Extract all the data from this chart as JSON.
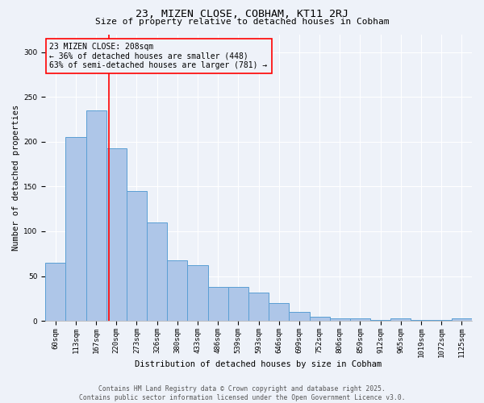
{
  "title": "23, MIZEN CLOSE, COBHAM, KT11 2RJ",
  "subtitle": "Size of property relative to detached houses in Cobham",
  "xlabel": "Distribution of detached houses by size in Cobham",
  "ylabel": "Number of detached properties",
  "categories": [
    "60sqm",
    "113sqm",
    "167sqm",
    "220sqm",
    "273sqm",
    "326sqm",
    "380sqm",
    "433sqm",
    "486sqm",
    "539sqm",
    "593sqm",
    "646sqm",
    "699sqm",
    "752sqm",
    "806sqm",
    "859sqm",
    "912sqm",
    "965sqm",
    "1019sqm",
    "1072sqm",
    "1125sqm"
  ],
  "values": [
    65,
    205,
    235,
    193,
    145,
    110,
    68,
    62,
    38,
    38,
    32,
    20,
    10,
    5,
    3,
    3,
    1,
    3,
    1,
    1,
    3
  ],
  "bar_color": "#aec6e8",
  "bar_edge_color": "#5a9fd4",
  "property_label": "23 MIZEN CLOSE: 208sqm",
  "annotation_line1": "← 36% of detached houses are smaller (448)",
  "annotation_line2": "63% of semi-detached houses are larger (781) →",
  "vline_color": "red",
  "vline_x": 2.62,
  "footer_line1": "Contains HM Land Registry data © Crown copyright and database right 2025.",
  "footer_line2": "Contains public sector information licensed under the Open Government Licence v3.0.",
  "ylim": [
    0,
    320
  ],
  "yticks": [
    0,
    50,
    100,
    150,
    200,
    250,
    300
  ],
  "background_color": "#eef2f9",
  "grid_color": "white",
  "title_fontsize": 9.5,
  "subtitle_fontsize": 8,
  "axis_label_fontsize": 7.5,
  "tick_fontsize": 6.5,
  "annotation_fontsize": 7,
  "footer_fontsize": 5.8
}
